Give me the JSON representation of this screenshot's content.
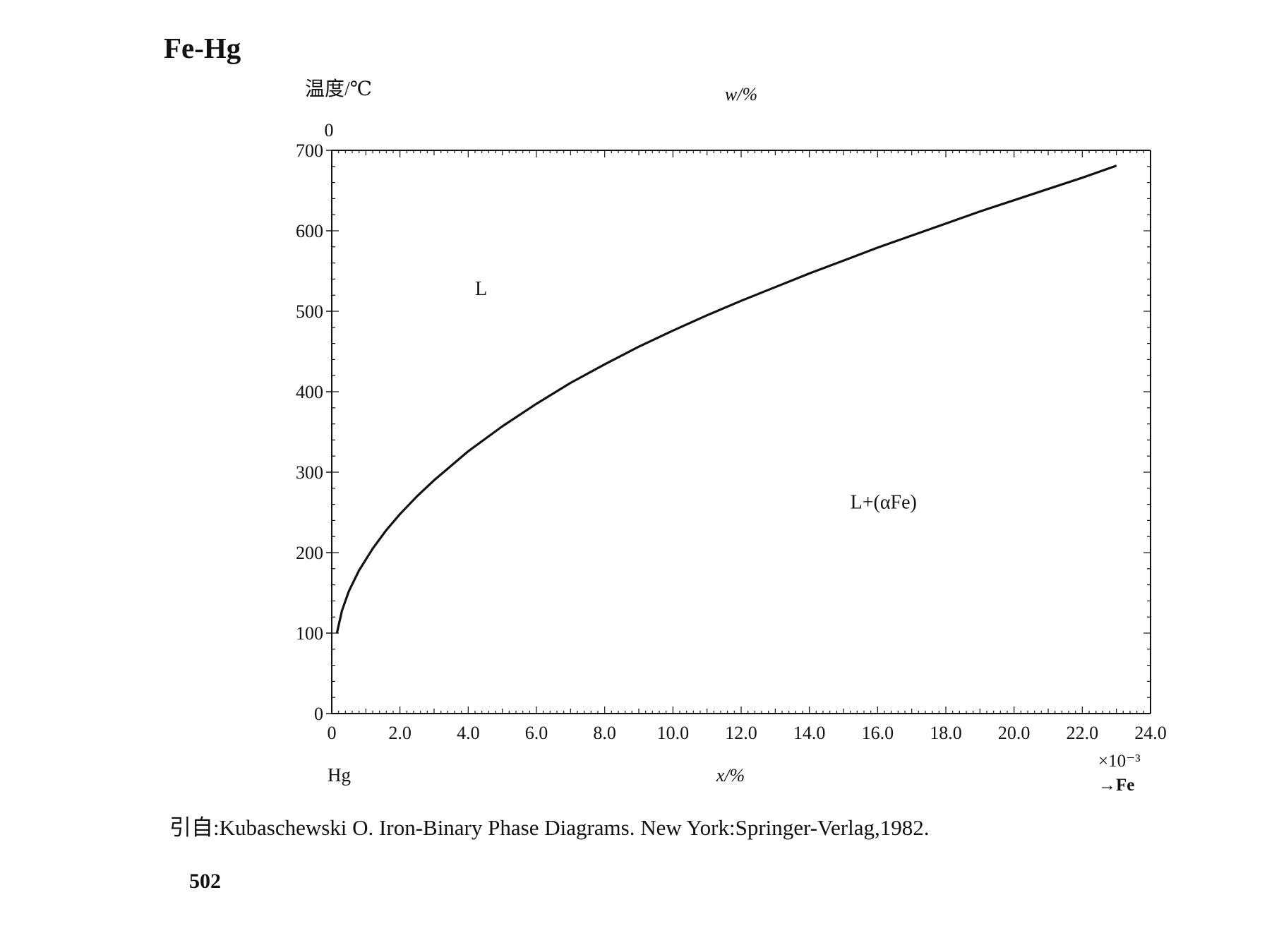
{
  "page": {
    "title": "Fe-Hg",
    "citation": "引自:Kubaschewski O. Iron-Binary Phase Diagrams. New York:Springer-Verlag,1982.",
    "page_number": "502"
  },
  "chart_data": {
    "type": "line",
    "title": "",
    "xlabel": "x/%",
    "x_top_label": "w/%",
    "ylabel": "温度/℃",
    "x_multiplier": "×10⁻³",
    "xlim": [
      0,
      24.0
    ],
    "ylim": [
      0,
      700
    ],
    "x_ticks": [
      "0",
      "2.0",
      "4.0",
      "6.0",
      "8.0",
      "10.0",
      "12.0",
      "14.0",
      "16.0",
      "18.0",
      "20.0",
      "22.0",
      "24.0"
    ],
    "y_ticks": [
      "0",
      "100",
      "200",
      "300",
      "400",
      "500",
      "600",
      "700"
    ],
    "x_top_ticks": [
      "0"
    ],
    "left_component": "Hg",
    "right_component": "→Fe",
    "series": [
      {
        "x": [
          0.15,
          0.3,
          0.5,
          0.8,
          1.2,
          1.6,
          2.0,
          2.5,
          3.0,
          3.5,
          4.0,
          5.0,
          6.0,
          7.0,
          8.0,
          9.0,
          10.0,
          11.0,
          12.0,
          13.0,
          14.0,
          15.0,
          16.0,
          17.0,
          18.0,
          19.0,
          20.0,
          21.0,
          22.0,
          23.0
        ],
        "y": [
          100,
          128,
          152,
          178,
          205,
          228,
          248,
          270,
          290,
          308,
          326,
          357,
          385,
          411,
          434,
          456,
          476,
          495,
          513,
          530,
          547,
          563,
          579,
          594,
          609,
          624,
          638,
          652,
          666,
          681
        ]
      }
    ],
    "annotations": [
      "L",
      "L+(αFe)"
    ],
    "grid": false,
    "legend": "none"
  }
}
